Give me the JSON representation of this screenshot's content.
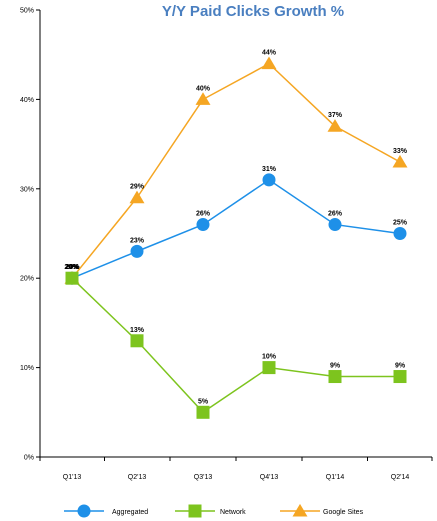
{
  "chart_data": {
    "type": "line",
    "title": "Y/Y Paid Clicks Growth %",
    "categories": [
      "Q1'13",
      "Q2'13",
      "Q3'13",
      "Q4'13",
      "Q1'14",
      "Q2'14"
    ],
    "ylim": [
      0,
      50
    ],
    "yticks": [
      "0%",
      "10%",
      "20%",
      "30%",
      "40%",
      "50%"
    ],
    "grid": false,
    "legend_position": "bottom",
    "series": [
      {
        "name": "Aggregated",
        "values": [
          20,
          23,
          26,
          31,
          26,
          25
        ],
        "labels": [
          "20%",
          "23%",
          "26%",
          "31%",
          "26%",
          "25%"
        ],
        "color": "#1E90E8",
        "marker": "circle"
      },
      {
        "name": "Network",
        "values": [
          20,
          13,
          5,
          10,
          9,
          9
        ],
        "labels": [
          "20%",
          "13%",
          "5%",
          "10%",
          "9%",
          "9%"
        ],
        "color": "#7DC41E",
        "marker": "square"
      },
      {
        "name": "Google Sites",
        "values": [
          20,
          29,
          40,
          44,
          37,
          33
        ],
        "labels": [
          "20%",
          "29%",
          "40%",
          "44%",
          "37%",
          "33%"
        ],
        "color": "#F5A623",
        "marker": "triangle"
      }
    ],
    "colors": {
      "title": "#4A7FC0",
      "axis": "#000000"
    }
  }
}
